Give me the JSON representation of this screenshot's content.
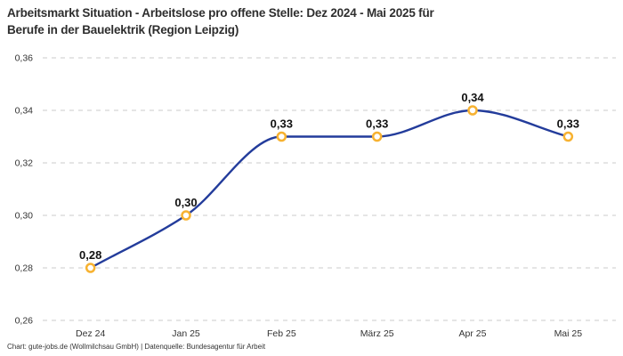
{
  "title": [
    "Arbeitsmarkt Situation - Arbeitslose pro offene Stelle: Dez 2024 - Mai 2025 für",
    "Berufe in der Bauelektrik (Region Leipzig)"
  ],
  "footer": "Chart: gute-jobs.de (Wollmilchsau GmbH) | Datenquelle: Bundesagentur für Arbeit",
  "colors": {
    "line": "#233C9B",
    "marker_ring": "#F7B231",
    "marker_fill": "#FFFFFF",
    "grid": "#CBCBCB",
    "tick_text": "#333333",
    "data_label_text": "#111111",
    "title_text": "#2E2E2E",
    "background": "#FFFFFF"
  },
  "chart_data": {
    "type": "line",
    "title": "Arbeitsmarkt Situation - Arbeitslose pro offene Stelle: Dez 2024 - Mai 2025 für Berufe in der Bauelektrik (Region Leipzig)",
    "categories": [
      "Dez 24",
      "Jan 25",
      "Feb 25",
      "März 25",
      "Apr 25",
      "Mai 25"
    ],
    "values": [
      0.28,
      0.3,
      0.33,
      0.33,
      0.34,
      0.33
    ],
    "data_labels": [
      "0,28",
      "0,30",
      "0,33",
      "0,33",
      "0,34",
      "0,33"
    ],
    "xlabel": "",
    "ylabel": "",
    "ylim": [
      0.26,
      0.36
    ],
    "ytick_step": 0.02,
    "ytick_labels": [
      "0,26",
      "0,28",
      "0,30",
      "0,32",
      "0,34",
      "0,36"
    ],
    "grid": "horizontal-dashed",
    "legend": "none",
    "interpolation": "monotone",
    "decimal_separator": ","
  }
}
